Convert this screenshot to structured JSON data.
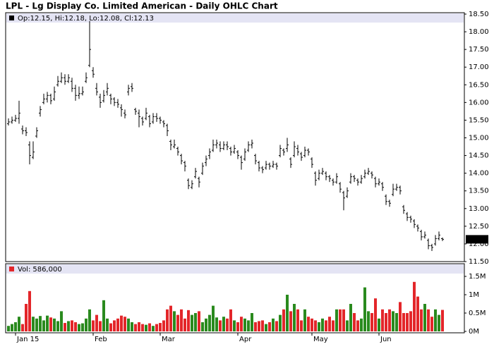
{
  "chart_data": [
    {
      "type": "ohlc",
      "title": "LPL - Lg Display Co. Limited American - Daily OHLC Chart",
      "legend_labels": [
        "Op:",
        ", Hi:",
        ", Lo:",
        ", Cl:"
      ],
      "bar_color": "#000000",
      "categories": [
        null,
        null,
        "Jan 15",
        null,
        null,
        null,
        null,
        null,
        null,
        null,
        null,
        null,
        null,
        null,
        null,
        null,
        null,
        null,
        null,
        null,
        null,
        null,
        null,
        null,
        "Feb",
        null,
        null,
        null,
        null,
        null,
        null,
        null,
        null,
        null,
        null,
        null,
        null,
        null,
        null,
        null,
        null,
        null,
        null,
        "Mar",
        null,
        null,
        null,
        null,
        null,
        null,
        null,
        null,
        null,
        null,
        null,
        null,
        null,
        null,
        null,
        null,
        null,
        null,
        null,
        null,
        null,
        "Apr",
        null,
        null,
        null,
        null,
        null,
        null,
        null,
        null,
        null,
        null,
        null,
        null,
        null,
        null,
        null,
        null,
        null,
        null,
        null,
        null,
        "May",
        null,
        null,
        null,
        null,
        null,
        null,
        null,
        null,
        null,
        null,
        null,
        null,
        null,
        null,
        null,
        null,
        null,
        null,
        "Jun",
        null,
        null,
        null,
        null,
        null,
        null,
        null,
        null,
        null,
        null,
        null,
        null,
        null,
        null,
        null,
        null,
        null,
        null
      ],
      "ohlc": [
        [
          15.4,
          15.55,
          15.35,
          15.45
        ],
        [
          15.45,
          15.6,
          15.4,
          15.5
        ],
        [
          15.5,
          15.65,
          15.45,
          15.55
        ],
        [
          15.55,
          16.05,
          15.4,
          15.7
        ],
        [
          15.25,
          15.35,
          15.1,
          15.2
        ],
        [
          15.2,
          15.3,
          15.05,
          15.15
        ],
        [
          14.8,
          14.9,
          14.25,
          14.5
        ],
        [
          14.45,
          14.9,
          14.4,
          14.6
        ],
        [
          15.05,
          15.3,
          15.0,
          15.2
        ],
        [
          15.7,
          15.9,
          15.6,
          15.8
        ],
        [
          16.0,
          16.25,
          15.95,
          16.1
        ],
        [
          16.1,
          16.3,
          16.0,
          16.2
        ],
        [
          16.2,
          16.25,
          15.95,
          16.05
        ],
        [
          16.1,
          16.45,
          16.05,
          16.3
        ],
        [
          16.5,
          16.75,
          16.45,
          16.6
        ],
        [
          16.6,
          16.85,
          16.55,
          16.7
        ],
        [
          16.7,
          16.8,
          16.5,
          16.6
        ],
        [
          16.6,
          16.8,
          16.55,
          16.7
        ],
        [
          16.6,
          16.7,
          16.3,
          16.4
        ],
        [
          16.4,
          16.5,
          16.05,
          16.2
        ],
        [
          16.2,
          16.45,
          16.1,
          16.25
        ],
        [
          16.25,
          16.45,
          16.2,
          16.3
        ],
        [
          16.6,
          16.85,
          16.55,
          16.7
        ],
        [
          17.05,
          18.3,
          17.0,
          17.5
        ],
        [
          16.9,
          17.0,
          16.7,
          16.8
        ],
        [
          16.4,
          16.55,
          16.2,
          16.3
        ],
        [
          16.15,
          16.25,
          15.85,
          16.0
        ],
        [
          16.05,
          16.35,
          16.0,
          16.2
        ],
        [
          16.3,
          16.55,
          16.2,
          16.4
        ],
        [
          16.2,
          16.25,
          15.95,
          16.1
        ],
        [
          16.1,
          16.15,
          15.9,
          16.0
        ],
        [
          16.0,
          16.1,
          15.85,
          15.95
        ],
        [
          15.85,
          15.95,
          15.6,
          15.8
        ],
        [
          15.7,
          15.8,
          15.55,
          15.65
        ],
        [
          16.3,
          16.5,
          16.2,
          16.4
        ],
        [
          16.45,
          16.55,
          16.3,
          16.4
        ],
        [
          15.8,
          15.85,
          15.65,
          15.75
        ],
        [
          15.7,
          15.8,
          15.3,
          15.6
        ],
        [
          15.55,
          15.6,
          15.35,
          15.45
        ],
        [
          15.55,
          15.85,
          15.5,
          15.7
        ],
        [
          15.6,
          15.65,
          15.3,
          15.4
        ],
        [
          15.45,
          15.7,
          15.4,
          15.6
        ],
        [
          15.6,
          15.7,
          15.45,
          15.55
        ],
        [
          15.55,
          15.6,
          15.4,
          15.5
        ],
        [
          15.45,
          15.5,
          15.3,
          15.4
        ],
        [
          15.35,
          15.4,
          15.05,
          15.2
        ],
        [
          14.9,
          14.95,
          14.65,
          14.8
        ],
        [
          14.75,
          14.95,
          14.7,
          14.8
        ],
        [
          14.7,
          14.75,
          14.5,
          14.6
        ],
        [
          14.5,
          14.55,
          14.25,
          14.35
        ],
        [
          14.3,
          14.35,
          14.05,
          14.2
        ],
        [
          13.8,
          13.85,
          13.55,
          13.65
        ],
        [
          13.6,
          13.8,
          13.55,
          13.7
        ],
        [
          13.9,
          14.15,
          13.85,
          14.05
        ],
        [
          13.85,
          13.9,
          13.6,
          13.75
        ],
        [
          14.0,
          14.3,
          13.95,
          14.2
        ],
        [
          14.3,
          14.5,
          14.2,
          14.4
        ],
        [
          14.5,
          14.7,
          14.4,
          14.6
        ],
        [
          14.65,
          14.95,
          14.6,
          14.8
        ],
        [
          14.8,
          14.95,
          14.7,
          14.85
        ],
        [
          14.8,
          14.9,
          14.6,
          14.7
        ],
        [
          14.7,
          14.9,
          14.65,
          14.8
        ],
        [
          14.8,
          14.9,
          14.65,
          14.75
        ],
        [
          14.7,
          14.75,
          14.5,
          14.6
        ],
        [
          14.6,
          14.8,
          14.55,
          14.7
        ],
        [
          14.6,
          14.65,
          14.4,
          14.5
        ],
        [
          14.45,
          14.5,
          14.1,
          14.3
        ],
        [
          14.4,
          14.7,
          14.35,
          14.6
        ],
        [
          14.65,
          14.9,
          14.6,
          14.8
        ],
        [
          14.8,
          14.95,
          14.7,
          14.85
        ],
        [
          14.5,
          14.55,
          14.25,
          14.35
        ],
        [
          14.3,
          14.35,
          14.05,
          14.15
        ],
        [
          14.15,
          14.2,
          14.0,
          14.1
        ],
        [
          14.15,
          14.35,
          14.1,
          14.25
        ],
        [
          14.25,
          14.3,
          14.1,
          14.2
        ],
        [
          14.2,
          14.35,
          14.15,
          14.25
        ],
        [
          14.25,
          14.3,
          14.1,
          14.2
        ],
        [
          14.5,
          14.8,
          14.45,
          14.7
        ],
        [
          14.65,
          14.7,
          14.5,
          14.6
        ],
        [
          14.7,
          15.0,
          14.6,
          14.8
        ],
        [
          14.4,
          14.45,
          14.15,
          14.25
        ],
        [
          14.5,
          14.9,
          14.45,
          14.75
        ],
        [
          14.7,
          14.8,
          14.5,
          14.6
        ],
        [
          14.55,
          14.6,
          14.35,
          14.45
        ],
        [
          14.5,
          14.75,
          14.45,
          14.65
        ],
        [
          14.65,
          14.7,
          14.5,
          14.6
        ],
        [
          14.4,
          14.45,
          14.15,
          14.25
        ],
        [
          14.0,
          14.05,
          13.65,
          13.8
        ],
        [
          13.85,
          14.1,
          13.8,
          14.0
        ],
        [
          14.0,
          14.15,
          13.95,
          14.05
        ],
        [
          14.0,
          14.05,
          13.8,
          13.9
        ],
        [
          13.9,
          13.95,
          13.75,
          13.85
        ],
        [
          13.8,
          13.85,
          13.65,
          13.75
        ],
        [
          13.75,
          14.0,
          13.7,
          13.9
        ],
        [
          13.7,
          13.75,
          13.45,
          13.55
        ],
        [
          13.45,
          13.5,
          12.95,
          13.3
        ],
        [
          13.35,
          13.6,
          13.3,
          13.5
        ],
        [
          13.75,
          14.0,
          13.7,
          13.9
        ],
        [
          13.9,
          13.95,
          13.75,
          13.85
        ],
        [
          13.8,
          13.85,
          13.65,
          13.75
        ],
        [
          13.75,
          13.95,
          13.7,
          13.85
        ],
        [
          13.9,
          14.1,
          13.85,
          14.0
        ],
        [
          14.0,
          14.15,
          13.95,
          14.05
        ],
        [
          14.0,
          14.05,
          13.85,
          13.95
        ],
        [
          13.85,
          13.9,
          13.6,
          13.7
        ],
        [
          13.7,
          13.85,
          13.65,
          13.75
        ],
        [
          13.7,
          13.75,
          13.5,
          13.6
        ],
        [
          13.35,
          13.4,
          13.1,
          13.2
        ],
        [
          13.2,
          13.25,
          13.05,
          13.15
        ],
        [
          13.4,
          13.7,
          13.35,
          13.55
        ],
        [
          13.55,
          13.7,
          13.5,
          13.6
        ],
        [
          13.6,
          13.65,
          13.4,
          13.5
        ],
        [
          13.05,
          13.1,
          12.85,
          12.95
        ],
        [
          12.85,
          12.9,
          12.65,
          12.75
        ],
        [
          12.75,
          12.8,
          12.6,
          12.7
        ],
        [
          12.65,
          12.7,
          12.45,
          12.55
        ],
        [
          12.5,
          12.55,
          12.35,
          12.45
        ],
        [
          12.35,
          12.4,
          12.1,
          12.2
        ],
        [
          12.2,
          12.35,
          12.15,
          12.25
        ],
        [
          12.1,
          12.15,
          11.85,
          11.95
        ],
        [
          11.95,
          12.0,
          11.8,
          11.9
        ],
        [
          12.0,
          12.25,
          11.95,
          12.15
        ],
        [
          12.15,
          12.35,
          12.1,
          12.25
        ],
        [
          12.15,
          12.18,
          12.08,
          12.13
        ]
      ],
      "ylim": [
        11.5,
        18.5
      ],
      "yticks": [
        {
          "value": 11.5,
          "label": "11.50"
        },
        {
          "value": 12,
          "label": "12.00"
        },
        {
          "value": 12.5,
          "label": "12.50"
        },
        {
          "value": 13,
          "label": "13.00"
        },
        {
          "value": 13.5,
          "label": "13.50"
        },
        {
          "value": 14,
          "label": "14.00"
        },
        {
          "value": 14.5,
          "label": "14.50"
        },
        {
          "value": 15,
          "label": "15.00"
        },
        {
          "value": 15.5,
          "label": "15.50"
        },
        {
          "value": 16,
          "label": "16.00"
        },
        {
          "value": 16.5,
          "label": "16.50"
        },
        {
          "value": 17,
          "label": "17.00"
        },
        {
          "value": 17.5,
          "label": "17.50"
        },
        {
          "value": 18,
          "label": "18.00"
        },
        {
          "value": 18.5,
          "label": "18.50"
        }
      ]
    },
    {
      "type": "bar",
      "legend_label": "Vol:",
      "last_value_label": "586,000",
      "up_color": "#2a8a1e",
      "down_color": "#e3262a",
      "values": [
        150000,
        200000,
        250000,
        400000,
        200000,
        750000,
        1100000,
        400000,
        350000,
        420000,
        300000,
        430000,
        380000,
        350000,
        280000,
        550000,
        230000,
        280000,
        300000,
        250000,
        200000,
        220000,
        350000,
        600000,
        300000,
        450000,
        280000,
        850000,
        350000,
        220000,
        300000,
        350000,
        430000,
        400000,
        350000,
        250000,
        200000,
        250000,
        200000,
        180000,
        220000,
        150000,
        200000,
        230000,
        300000,
        600000,
        700000,
        550000,
        450000,
        600000,
        350000,
        580000,
        450000,
        500000,
        550000,
        250000,
        350000,
        450000,
        700000,
        380000,
        300000,
        400000,
        350000,
        600000,
        300000,
        250000,
        400000,
        350000,
        300000,
        500000,
        250000,
        280000,
        300000,
        200000,
        250000,
        350000,
        280000,
        450000,
        600000,
        1000000,
        550000,
        750000,
        600000,
        300000,
        600000,
        400000,
        350000,
        300000,
        250000,
        350000,
        300000,
        400000,
        300000,
        600000,
        600000,
        600000,
        300000,
        750000,
        500000,
        300000,
        350000,
        1200000,
        550000,
        500000,
        900000,
        350000,
        600000,
        500000,
        600000,
        550000,
        500000,
        800000,
        500000,
        500000,
        550000,
        1350000,
        950000,
        600000,
        750000,
        600000,
        400000,
        600000,
        450000,
        586000
      ],
      "ylim": [
        0,
        1800000
      ],
      "yticks": [
        {
          "value": 0,
          "label": "0M"
        },
        {
          "value": 500000,
          "label": "0.5M"
        },
        {
          "value": 1000000,
          "label": "1M"
        },
        {
          "value": 1500000,
          "label": "1.5M"
        }
      ]
    }
  ]
}
